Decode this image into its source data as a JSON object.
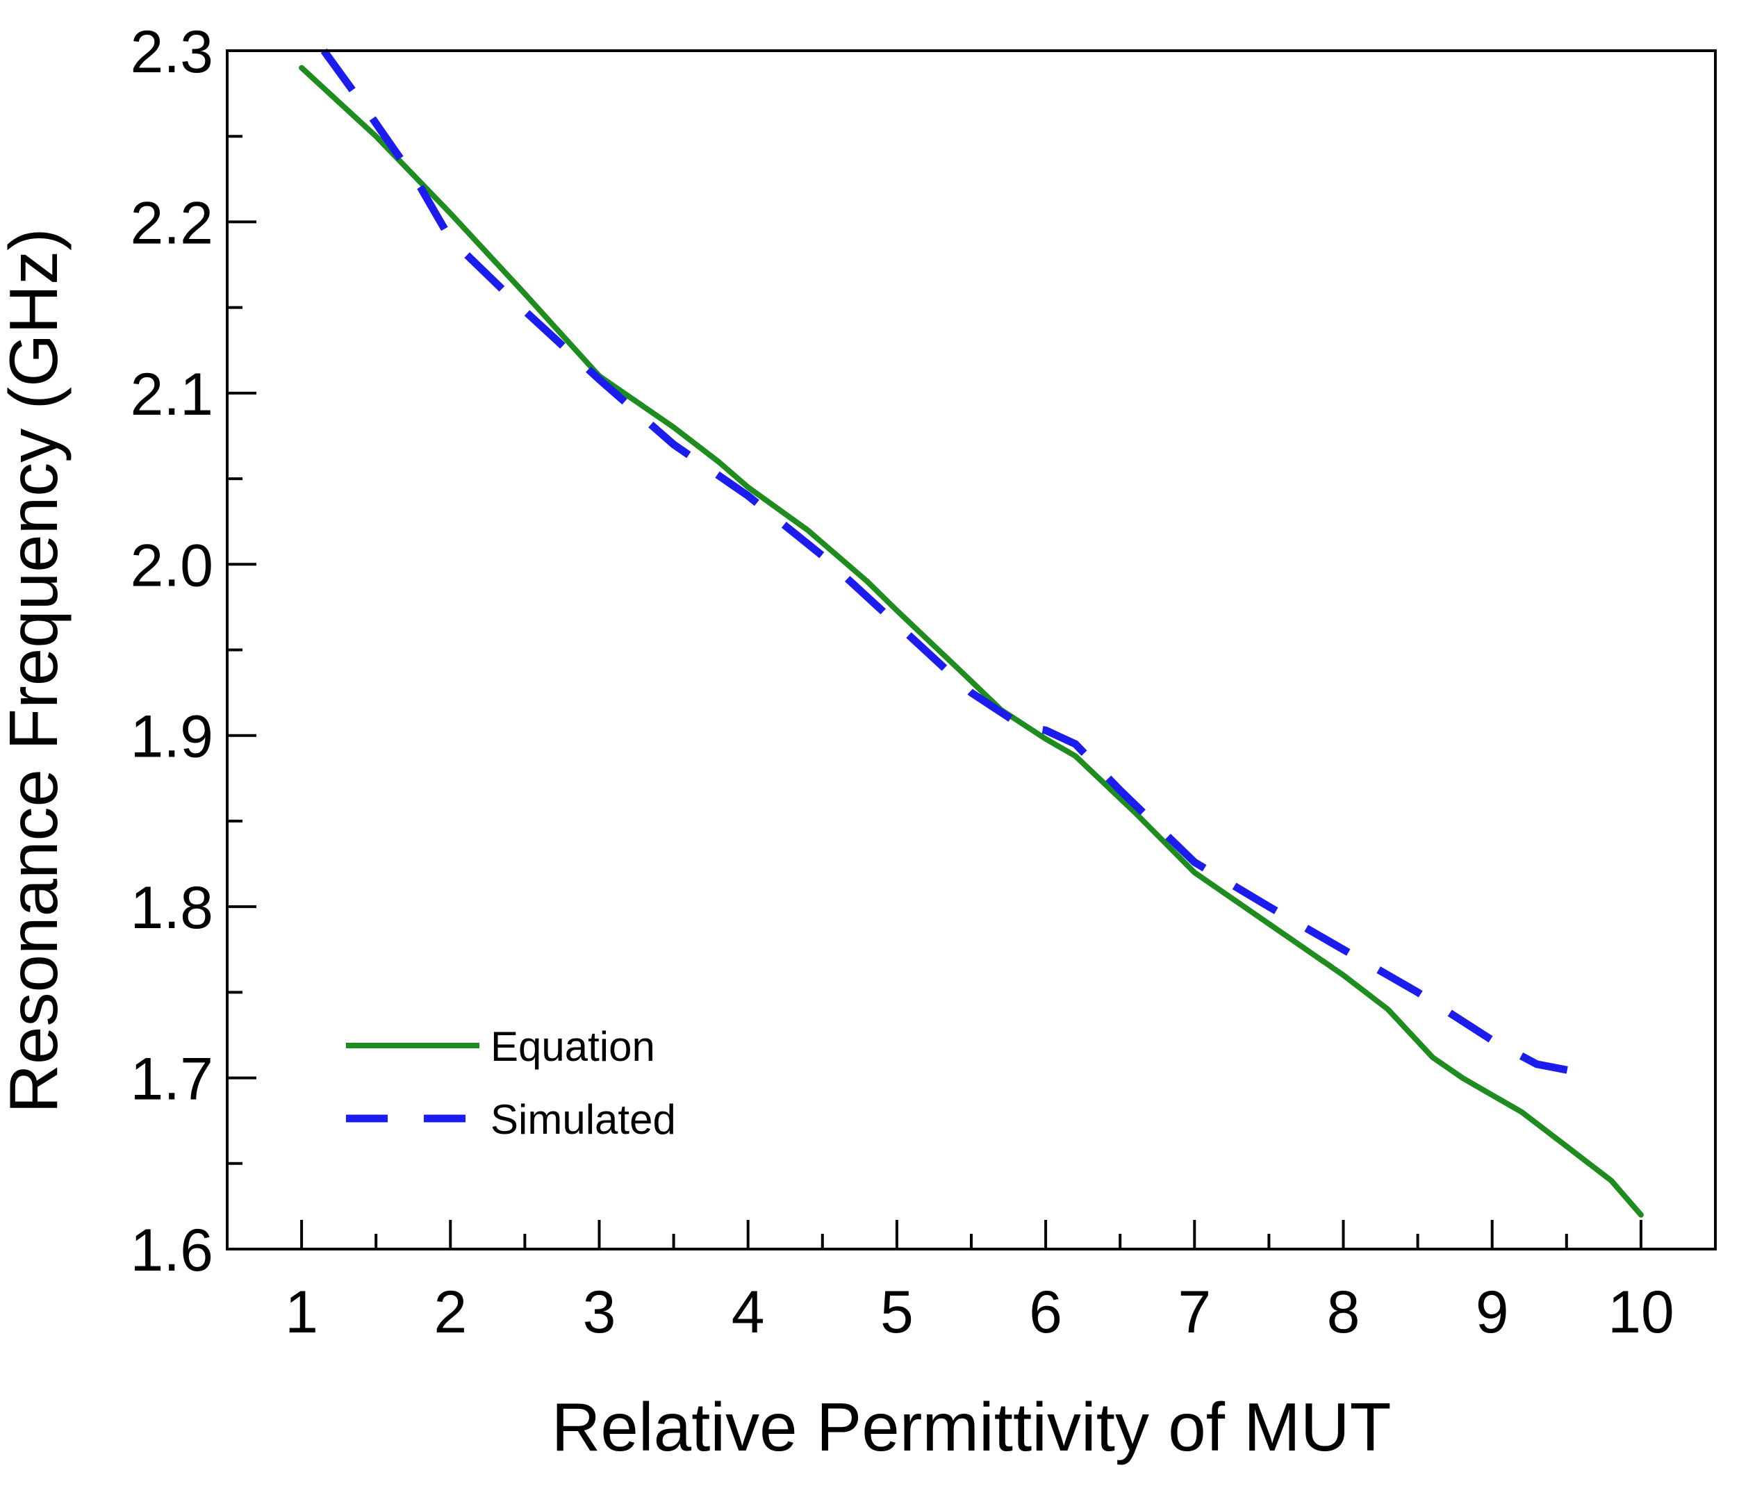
{
  "chart_data": {
    "type": "line",
    "title": "",
    "xlabel": "Relative Permittivity of MUT",
    "ylabel": "Resonance Frequency (GHz)",
    "xlim": [
      0.5,
      10.5
    ],
    "ylim": [
      1.6,
      2.3
    ],
    "xticks": [
      1,
      2,
      3,
      4,
      5,
      6,
      7,
      8,
      9,
      10
    ],
    "xtick_labels": [
      "1",
      "2",
      "3",
      "4",
      "5",
      "6",
      "7",
      "8",
      "9",
      "10"
    ],
    "yticks": [
      1.6,
      1.7,
      1.8,
      1.9,
      2.0,
      2.1,
      2.2,
      2.3
    ],
    "ytick_labels": [
      "1.6",
      "1.7",
      "1.8",
      "1.9",
      "2.0",
      "2.1",
      "2.2",
      "2.3"
    ],
    "grid": false,
    "legend_position": "bottom-left",
    "series": [
      {
        "name": "Equation",
        "color": "#1e8c1e",
        "style": "solid",
        "x": [
          1.0,
          1.5,
          2.0,
          2.5,
          3.0,
          3.5,
          3.8,
          4.0,
          4.4,
          4.8,
          5.0,
          5.4,
          5.7,
          6.0,
          6.2,
          6.6,
          7.0,
          7.5,
          8.0,
          8.3,
          8.6,
          8.8,
          9.2,
          9.5,
          9.8,
          10.0
        ],
        "y": [
          2.29,
          2.25,
          2.205,
          2.158,
          2.11,
          2.08,
          2.06,
          2.045,
          2.02,
          1.99,
          1.973,
          1.94,
          1.915,
          1.898,
          1.888,
          1.855,
          1.82,
          1.79,
          1.76,
          1.74,
          1.712,
          1.7,
          1.68,
          1.66,
          1.64,
          1.62
        ]
      },
      {
        "name": "Simulated",
        "color": "#1c1cee",
        "style": "dashed",
        "x": [
          1.15,
          1.4,
          1.6,
          1.8,
          2.0,
          2.5,
          3.0,
          3.5,
          4.0,
          4.5,
          5.0,
          5.5,
          5.85,
          6.0,
          6.2,
          6.5,
          7.0,
          7.5,
          8.0,
          8.5,
          9.0,
          9.3,
          9.6
        ],
        "y": [
          2.3,
          2.27,
          2.245,
          2.22,
          2.19,
          2.148,
          2.108,
          2.07,
          2.04,
          2.005,
          1.965,
          1.925,
          1.905,
          1.903,
          1.895,
          1.868,
          1.826,
          1.8,
          1.775,
          1.75,
          1.722,
          1.708,
          1.703
        ]
      }
    ]
  }
}
